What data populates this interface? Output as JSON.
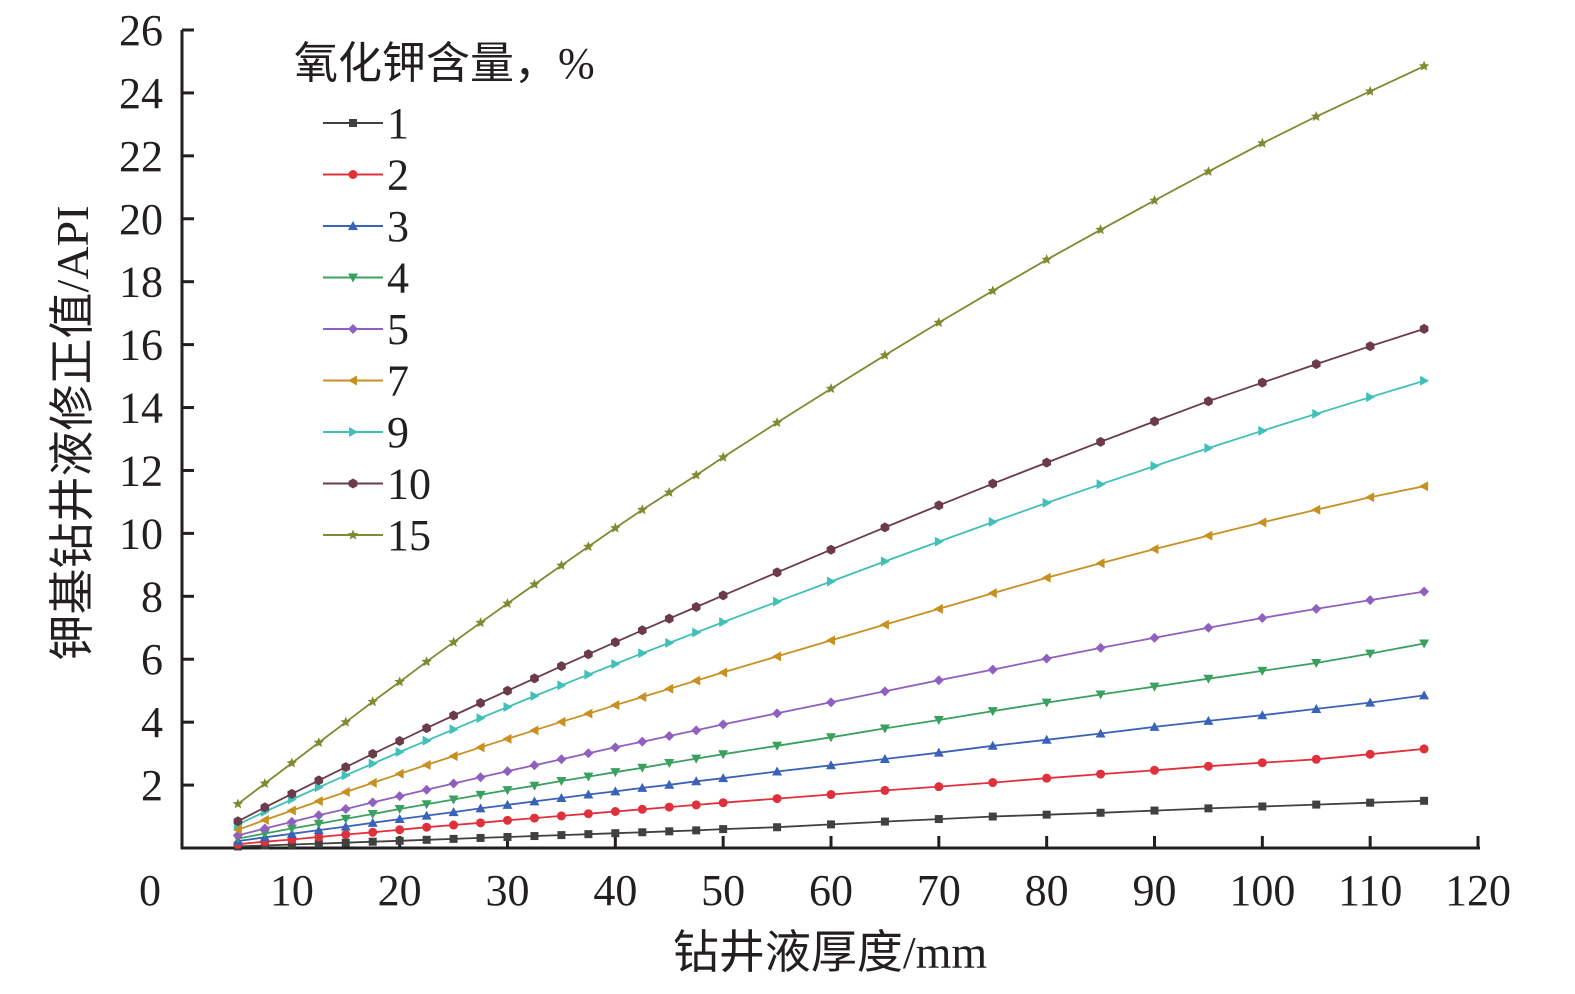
{
  "chart_data": {
    "type": "line",
    "title": "",
    "xlabel": "钻井液厚度/mm",
    "ylabel": "钾基钻井液修正值/API",
    "xlim": [
      0,
      120
    ],
    "ylim": [
      0,
      26
    ],
    "xticks": [
      0,
      10,
      20,
      30,
      40,
      50,
      60,
      70,
      80,
      90,
      100,
      110,
      120
    ],
    "yticks": [
      2,
      4,
      6,
      8,
      10,
      12,
      14,
      16,
      18,
      20,
      22,
      24,
      26
    ],
    "xtick_labels": [
      "0",
      "10",
      "20",
      "30",
      "40",
      "50",
      "60",
      "70",
      "80",
      "90",
      "100",
      "110",
      "120"
    ],
    "ytick_labels": [
      "2",
      "4",
      "6",
      "8",
      "10",
      "12",
      "14",
      "16",
      "18",
      "20",
      "22",
      "24",
      "26"
    ],
    "grid": false,
    "legend": {
      "title": "氧化钾含量，%",
      "placement": "top-left"
    },
    "x": [
      5,
      7.5,
      10,
      12.5,
      15,
      17.5,
      20,
      22.5,
      25,
      27.5,
      30,
      32.5,
      35,
      37.5,
      40,
      42.5,
      45,
      47.5,
      50,
      55,
      60,
      65,
      70,
      75,
      80,
      85,
      90,
      95,
      100,
      105,
      110,
      115
    ],
    "series": [
      {
        "name": "1",
        "color": "#404040",
        "marker": "square",
        "values": [
          0.05,
          0.08,
          0.11,
          0.14,
          0.17,
          0.2,
          0.23,
          0.26,
          0.29,
          0.32,
          0.35,
          0.38,
          0.41,
          0.44,
          0.47,
          0.5,
          0.53,
          0.56,
          0.6,
          0.66,
          0.75,
          0.84,
          0.92,
          1.0,
          1.06,
          1.12,
          1.19,
          1.26,
          1.32,
          1.38,
          1.44,
          1.5
        ]
      },
      {
        "name": "2",
        "color": "#e0303c",
        "marker": "circle",
        "values": [
          0.12,
          0.2,
          0.27,
          0.35,
          0.43,
          0.5,
          0.58,
          0.66,
          0.73,
          0.8,
          0.88,
          0.95,
          1.02,
          1.09,
          1.16,
          1.23,
          1.3,
          1.37,
          1.44,
          1.57,
          1.7,
          1.83,
          1.95,
          2.08,
          2.22,
          2.35,
          2.47,
          2.6,
          2.71,
          2.82,
          2.98,
          3.15
        ]
      },
      {
        "name": "3",
        "color": "#3a62b8",
        "marker": "triangle-up",
        "values": [
          0.22,
          0.34,
          0.45,
          0.57,
          0.68,
          0.8,
          0.92,
          1.03,
          1.14,
          1.26,
          1.37,
          1.48,
          1.59,
          1.7,
          1.8,
          1.91,
          2.01,
          2.12,
          2.22,
          2.43,
          2.63,
          2.83,
          3.03,
          3.25,
          3.44,
          3.64,
          3.85,
          4.04,
          4.22,
          4.42,
          4.62,
          4.85
        ]
      },
      {
        "name": "4",
        "color": "#3aa060",
        "marker": "triangle-down",
        "values": [
          0.3,
          0.46,
          0.62,
          0.77,
          0.93,
          1.08,
          1.24,
          1.39,
          1.54,
          1.69,
          1.84,
          1.98,
          2.13,
          2.27,
          2.41,
          2.55,
          2.7,
          2.84,
          2.98,
          3.25,
          3.52,
          3.8,
          4.07,
          4.35,
          4.62,
          4.88,
          5.13,
          5.38,
          5.63,
          5.88,
          6.18,
          6.5
        ]
      },
      {
        "name": "5",
        "color": "#9060c0",
        "marker": "diamond",
        "values": [
          0.4,
          0.62,
          0.83,
          1.04,
          1.24,
          1.45,
          1.65,
          1.85,
          2.05,
          2.25,
          2.44,
          2.63,
          2.82,
          3.01,
          3.2,
          3.38,
          3.56,
          3.74,
          3.93,
          4.28,
          4.63,
          4.98,
          5.33,
          5.67,
          6.02,
          6.36,
          6.68,
          7.0,
          7.31,
          7.6,
          7.88,
          8.15
        ]
      },
      {
        "name": "7",
        "color": "#c89020",
        "marker": "triangle-left",
        "values": [
          0.58,
          0.89,
          1.19,
          1.49,
          1.78,
          2.07,
          2.36,
          2.64,
          2.92,
          3.2,
          3.47,
          3.74,
          4.01,
          4.27,
          4.54,
          4.8,
          5.06,
          5.32,
          5.58,
          6.09,
          6.6,
          7.1,
          7.6,
          8.1,
          8.59,
          9.05,
          9.5,
          9.93,
          10.35,
          10.75,
          11.15,
          11.5
        ]
      },
      {
        "name": "9",
        "color": "#40c0b8",
        "marker": "triangle-right",
        "values": [
          0.75,
          1.15,
          1.54,
          1.93,
          2.31,
          2.68,
          3.05,
          3.41,
          3.77,
          4.13,
          4.48,
          4.83,
          5.17,
          5.51,
          5.85,
          6.19,
          6.52,
          6.85,
          7.18,
          7.83,
          8.47,
          9.11,
          9.74,
          10.36,
          10.97,
          11.56,
          12.14,
          12.71,
          13.26,
          13.8,
          14.33,
          14.85
        ]
      },
      {
        "name": "10",
        "color": "#6b3c48",
        "marker": "hexagon",
        "values": [
          0.85,
          1.29,
          1.72,
          2.15,
          2.57,
          2.99,
          3.4,
          3.81,
          4.21,
          4.61,
          5.0,
          5.39,
          5.78,
          6.16,
          6.54,
          6.92,
          7.29,
          7.66,
          8.03,
          8.76,
          9.48,
          10.19,
          10.89,
          11.58,
          12.25,
          12.91,
          13.56,
          14.2,
          14.79,
          15.38,
          15.95,
          16.5
        ]
      },
      {
        "name": "15",
        "color": "#808a30",
        "marker": "star",
        "values": [
          1.4,
          2.05,
          2.7,
          3.35,
          4.0,
          4.65,
          5.28,
          5.92,
          6.54,
          7.16,
          7.77,
          8.38,
          8.98,
          9.58,
          10.17,
          10.75,
          11.3,
          11.85,
          12.42,
          13.52,
          14.6,
          15.66,
          16.7,
          17.71,
          18.7,
          19.65,
          20.58,
          21.5,
          22.4,
          23.25,
          24.05,
          24.85
        ]
      }
    ]
  }
}
